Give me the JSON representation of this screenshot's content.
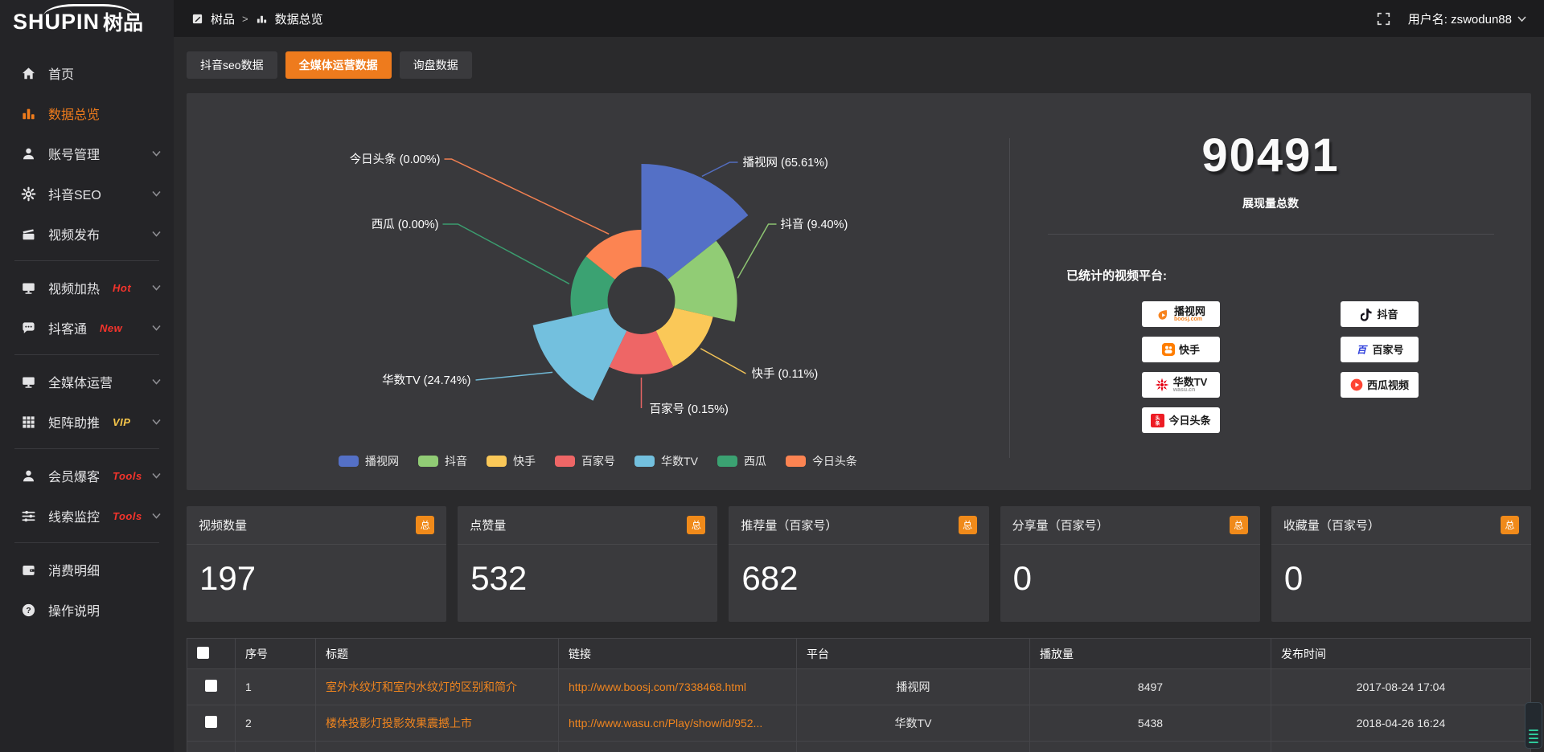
{
  "logo": {
    "text_en": "SHUPIN",
    "text_cn": "树品"
  },
  "topbar": {
    "breadcrumb": {
      "root": "树品",
      "separator": ">",
      "current": "数据总览"
    },
    "username_label": "用户名: zswodun88"
  },
  "sidebar": {
    "items": [
      {
        "label": "首页",
        "icon": "home-icon"
      },
      {
        "label": "数据总览",
        "icon": "chart-bars-icon",
        "active": true
      },
      {
        "label": "账号管理",
        "icon": "user-icon",
        "chevron": true
      },
      {
        "label": "抖音SEO",
        "icon": "gear-icon",
        "chevron": true
      },
      {
        "label": "视频发布",
        "icon": "video-publish-icon",
        "chevron": true
      },
      {
        "divider": true
      },
      {
        "label": "视频加热",
        "icon": "monitor-icon",
        "badge": "Hot",
        "badge_color": "#f5342c",
        "chevron": true
      },
      {
        "label": "抖客通",
        "icon": "chat-icon",
        "badge": "New",
        "badge_color": "#f5342c",
        "chevron": true
      },
      {
        "divider": true
      },
      {
        "label": "全媒体运营",
        "icon": "monitor-icon",
        "chevron": true
      },
      {
        "label": "矩阵助推",
        "icon": "grid-icon",
        "badge": "VIP",
        "badge_color": "#f6c64a",
        "chevron": true
      },
      {
        "divider": true
      },
      {
        "label": "会员爆客",
        "icon": "user-icon",
        "badge": "Tools",
        "badge_color": "#f5342c",
        "chevron": true
      },
      {
        "label": "线索监控",
        "icon": "sliders-icon",
        "badge": "Tools",
        "badge_color": "#f5342c",
        "chevron": true
      },
      {
        "divider": true
      },
      {
        "label": "消费明细",
        "icon": "wallet-icon"
      },
      {
        "label": "操作说明",
        "icon": "question-icon"
      }
    ]
  },
  "tabs": [
    {
      "label": "抖音seo数据",
      "active": false
    },
    {
      "label": "全媒体运营数据",
      "active": true
    },
    {
      "label": "询盘数据",
      "active": false
    }
  ],
  "chart_data": {
    "type": "pie",
    "subtype": "nightingale-rose",
    "categories": [
      "播视网",
      "抖音",
      "快手",
      "百家号",
      "华数TV",
      "西瓜",
      "今日头条"
    ],
    "values_percent": [
      65.61,
      9.4,
      0.11,
      0.15,
      24.74,
      0.0,
      0.0
    ],
    "colors": [
      "#5470c6",
      "#91cc75",
      "#fac858",
      "#ee6666",
      "#73c0de",
      "#3ba272",
      "#fc8452"
    ],
    "label_format": "{name} ({value}%)",
    "legend_position": "bottom",
    "legend": [
      "播视网",
      "抖音",
      "快手",
      "百家号",
      "华数TV",
      "西瓜",
      "今日头条"
    ]
  },
  "summary": {
    "total_value": "90491",
    "total_label": "展现量总数",
    "platforms_title": "已统计的视频平台:",
    "platforms_left": [
      {
        "name": "播视网",
        "sub": "boosj.com",
        "icon": "boosj-logo"
      },
      {
        "name": "快手",
        "icon": "kuaishou-logo"
      },
      {
        "name": "华数TV",
        "sub": "wasu.cn",
        "icon": "wasu-logo"
      },
      {
        "name": "今日头条",
        "icon": "toutiao-logo"
      }
    ],
    "platforms_right": [
      {
        "name": "抖音",
        "icon": "douyin-logo"
      },
      {
        "name": "百家号",
        "icon": "baijiahao-logo"
      },
      {
        "name": "西瓜视频",
        "icon": "xigua-logo"
      }
    ]
  },
  "stat_cards": [
    {
      "title": "视频数量",
      "badge": "总",
      "value": "197"
    },
    {
      "title": "点赞量",
      "badge": "总",
      "value": "532"
    },
    {
      "title": "推荐量（百家号）",
      "badge": "总",
      "value": "682"
    },
    {
      "title": "分享量（百家号）",
      "badge": "总",
      "value": "0"
    },
    {
      "title": "收藏量（百家号）",
      "badge": "总",
      "value": "0"
    }
  ],
  "table": {
    "headers": [
      "序号",
      "标题",
      "链接",
      "平台",
      "播放量",
      "发布时间"
    ],
    "rows": [
      {
        "no": "1",
        "title": "室外水纹灯和室内水纹灯的区别和简介",
        "link": "http://www.boosj.com/7338468.html",
        "platform": "播视网",
        "plays": "8497",
        "time": "2017-08-24 17:04"
      },
      {
        "no": "2",
        "title": "楼体投影灯投影效果震撼上市",
        "link": "http://www.wasu.cn/Play/show/id/952...",
        "platform": "华数TV",
        "plays": "5438",
        "time": "2018-04-26 16:24"
      },
      {
        "no": "",
        "title": "",
        "link": "",
        "platform": "",
        "plays": "",
        "time": ""
      }
    ]
  },
  "colors": {
    "accent_orange": "#ee7b1d",
    "badge_orange": "#f08a1a",
    "link_orange": "#f0851f",
    "hot_red": "#f5342c",
    "vip_yellow": "#f6c64a",
    "panel_bg": "#39393c",
    "sidebar_bg": "#242427",
    "topbar_bg": "#1c1c1e"
  }
}
